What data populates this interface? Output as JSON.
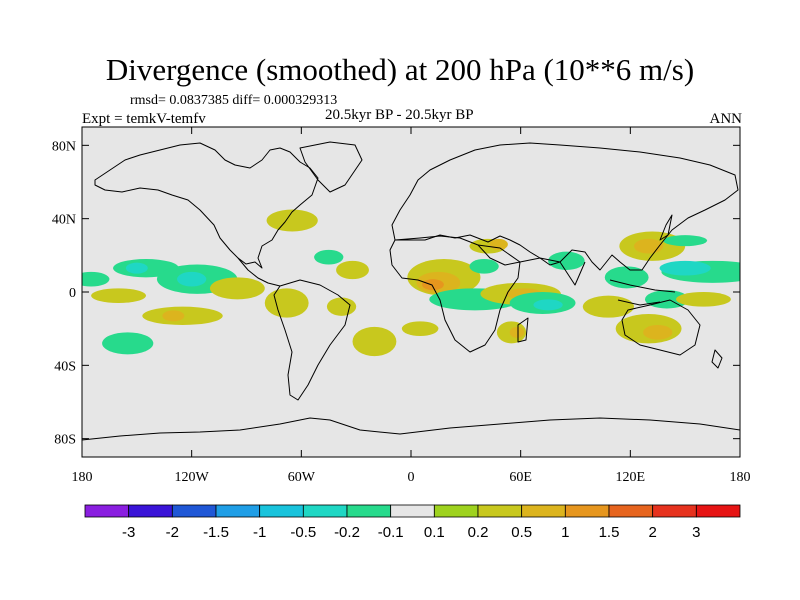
{
  "title": "Divergence (smoothed) at 200 hPa (10**6 m/s)",
  "stats": "rmsd= 0.0837385 diff= 0.000329313",
  "experiment": "Expt = temkV-temfv",
  "period": "20.5kyr BP - 20.5kyr BP",
  "season": "ANN",
  "map": {
    "projection": "cylindrical-equidistant",
    "lon_range": [
      -180,
      180
    ],
    "lat_range": [
      -90,
      90
    ],
    "background_color": "#e6e6e6",
    "y_ticks": [
      {
        "value": 80,
        "label": "80N"
      },
      {
        "value": 40,
        "label": "40N"
      },
      {
        "value": 0,
        "label": "0"
      },
      {
        "value": -40,
        "label": "40S"
      },
      {
        "value": -80,
        "label": "80S"
      }
    ],
    "x_ticks": [
      {
        "value": -180,
        "label": "180"
      },
      {
        "value": -120,
        "label": "120W"
      },
      {
        "value": -60,
        "label": "60W"
      },
      {
        "value": 0,
        "label": "0"
      },
      {
        "value": 60,
        "label": "60E"
      },
      {
        "value": 120,
        "label": "120E"
      },
      {
        "value": 180,
        "label": "180"
      }
    ]
  },
  "colorbar": {
    "colors": [
      "#8a1ee0",
      "#3a14d8",
      "#1f57d6",
      "#1f9ee6",
      "#19c3dc",
      "#1fd7c4",
      "#27da8c",
      "#e6e6e6",
      "#9ed21e",
      "#c8c81e",
      "#dcb41e",
      "#e6961e",
      "#e6641e",
      "#e6321e",
      "#e61414"
    ],
    "labels": [
      "-3",
      "-2",
      "-1.5",
      "-1",
      "-0.5",
      "-0.2",
      "-0.1",
      "0.1",
      "0.2",
      "0.5",
      "1",
      "1.5",
      "2",
      "3"
    ]
  },
  "anomaly_regions": [
    {
      "lon": -175,
      "lat": 7,
      "rx": 10,
      "ry": 4,
      "value": -0.2
    },
    {
      "lon": -145,
      "lat": 13,
      "rx": 18,
      "ry": 5,
      "value": -0.2
    },
    {
      "lon": -150,
      "lat": 13,
      "rx": 6,
      "ry": 3,
      "value": -0.5
    },
    {
      "lon": -160,
      "lat": -2,
      "rx": 15,
      "ry": 4,
      "value": 0.2
    },
    {
      "lon": -117,
      "lat": 7,
      "rx": 22,
      "ry": 8,
      "value": -0.2
    },
    {
      "lon": -120,
      "lat": 7,
      "rx": 8,
      "ry": 4,
      "value": -0.5
    },
    {
      "lon": -95,
      "lat": 2,
      "rx": 15,
      "ry": 6,
      "value": 0.2
    },
    {
      "lon": -68,
      "lat": -6,
      "rx": 12,
      "ry": 8,
      "value": 0.2
    },
    {
      "lon": -155,
      "lat": -28,
      "rx": 14,
      "ry": 6,
      "value": -0.2
    },
    {
      "lon": -125,
      "lat": -13,
      "rx": 22,
      "ry": 5,
      "value": 0.2
    },
    {
      "lon": -130,
      "lat": -13,
      "rx": 6,
      "ry": 3,
      "value": 0.5
    },
    {
      "lon": -65,
      "lat": 39,
      "rx": 14,
      "ry": 6,
      "value": 0.2
    },
    {
      "lon": -45,
      "lat": 19,
      "rx": 8,
      "ry": 4,
      "value": -0.2
    },
    {
      "lon": -32,
      "lat": 12,
      "rx": 9,
      "ry": 5,
      "value": 0.2
    },
    {
      "lon": -38,
      "lat": -8,
      "rx": 8,
      "ry": 5,
      "value": 0.2
    },
    {
      "lon": -20,
      "lat": -27,
      "rx": 12,
      "ry": 8,
      "value": 0.2
    },
    {
      "lon": 18,
      "lat": 8,
      "rx": 20,
      "ry": 10,
      "value": 0.2
    },
    {
      "lon": 15,
      "lat": 5,
      "rx": 12,
      "ry": 6,
      "value": 0.5
    },
    {
      "lon": 12,
      "lat": 4,
      "rx": 6,
      "ry": 3,
      "value": 1.0
    },
    {
      "lon": 42,
      "lat": 25,
      "rx": 10,
      "ry": 4,
      "value": 0.2
    },
    {
      "lon": 48,
      "lat": 26,
      "rx": 5,
      "ry": 3,
      "value": 0.5
    },
    {
      "lon": 85,
      "lat": 17,
      "rx": 10,
      "ry": 5,
      "value": -0.2
    },
    {
      "lon": 40,
      "lat": 14,
      "rx": 8,
      "ry": 4,
      "value": -0.2
    },
    {
      "lon": 5,
      "lat": -20,
      "rx": 10,
      "ry": 4,
      "value": 0.2
    },
    {
      "lon": 35,
      "lat": -4,
      "rx": 25,
      "ry": 6,
      "value": -0.2
    },
    {
      "lon": 60,
      "lat": -1,
      "rx": 22,
      "ry": 6,
      "value": 0.2
    },
    {
      "lon": 62,
      "lat": -1,
      "rx": 10,
      "ry": 3,
      "value": 0.5
    },
    {
      "lon": 72,
      "lat": -6,
      "rx": 18,
      "ry": 6,
      "value": -0.2
    },
    {
      "lon": 75,
      "lat": -7,
      "rx": 8,
      "ry": 3,
      "value": -0.5
    },
    {
      "lon": 55,
      "lat": -22,
      "rx": 8,
      "ry": 6,
      "value": 0.2
    },
    {
      "lon": 58,
      "lat": -22,
      "rx": 4,
      "ry": 3,
      "value": 0.5
    },
    {
      "lon": 132,
      "lat": 25,
      "rx": 18,
      "ry": 8,
      "value": 0.2
    },
    {
      "lon": 130,
      "lat": 25,
      "rx": 8,
      "ry": 4,
      "value": 0.5
    },
    {
      "lon": 150,
      "lat": 28,
      "rx": 12,
      "ry": 3,
      "value": -0.2
    },
    {
      "lon": 165,
      "lat": 11,
      "rx": 28,
      "ry": 6,
      "value": -0.2
    },
    {
      "lon": 150,
      "lat": 13,
      "rx": 14,
      "ry": 4,
      "value": -0.5
    },
    {
      "lon": 118,
      "lat": 8,
      "rx": 12,
      "ry": 6,
      "value": -0.2
    },
    {
      "lon": 140,
      "lat": -4,
      "rx": 12,
      "ry": 5,
      "value": -0.2
    },
    {
      "lon": 160,
      "lat": -4,
      "rx": 15,
      "ry": 4,
      "value": 0.2
    },
    {
      "lon": 130,
      "lat": -20,
      "rx": 18,
      "ry": 8,
      "value": 0.2
    },
    {
      "lon": 135,
      "lat": -22,
      "rx": 8,
      "ry": 4,
      "value": 0.5
    },
    {
      "lon": 108,
      "lat": -8,
      "rx": 14,
      "ry": 6,
      "value": 0.2
    }
  ]
}
